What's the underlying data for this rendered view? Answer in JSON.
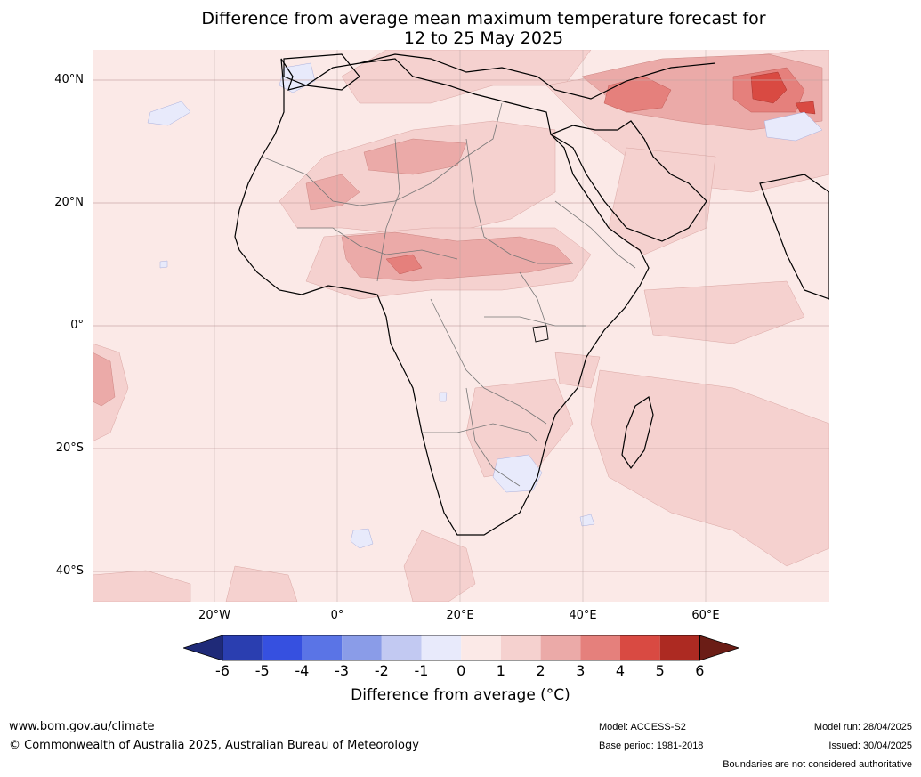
{
  "title": {
    "line1": "Difference from average mean maximum temperature forecast for",
    "line2": "12 to 25 May 2025"
  },
  "map": {
    "lat_labels": [
      "40°N",
      "20°N",
      "0°",
      "20°S",
      "40°S"
    ],
    "lon_labels": [
      "20°W",
      "0°",
      "20°E",
      "40°E",
      "60°E"
    ]
  },
  "colorbar": {
    "ticks": [
      "-6",
      "-5",
      "-4",
      "-3",
      "-2",
      "-1",
      "0",
      "1",
      "2",
      "3",
      "4",
      "5",
      "6"
    ],
    "colors": [
      "#2a3eb0",
      "#3650e0",
      "#5a74e6",
      "#8a9ce8",
      "#c2c9f2",
      "#e8eafb",
      "#fbe9e7",
      "#f5d1cf",
      "#ebaaa8",
      "#e5807c",
      "#d94a42",
      "#ad2a22"
    ],
    "low_extend_color": "#1f2a78",
    "high_extend_color": "#6b1d16",
    "label": "Difference from average (°C)"
  },
  "footer": {
    "website": "www.bom.gov.au/climate",
    "copyright": "© Commonwealth of Australia 2025, Australian Bureau of Meteorology",
    "model": "Model: ACCESS-S2",
    "base_period": "Base period: 1981-2018",
    "model_run": "Model run: 28/04/2025",
    "issued": "Issued: 30/04/2025",
    "disclaimer": "Boundaries are not considered authoritative"
  }
}
